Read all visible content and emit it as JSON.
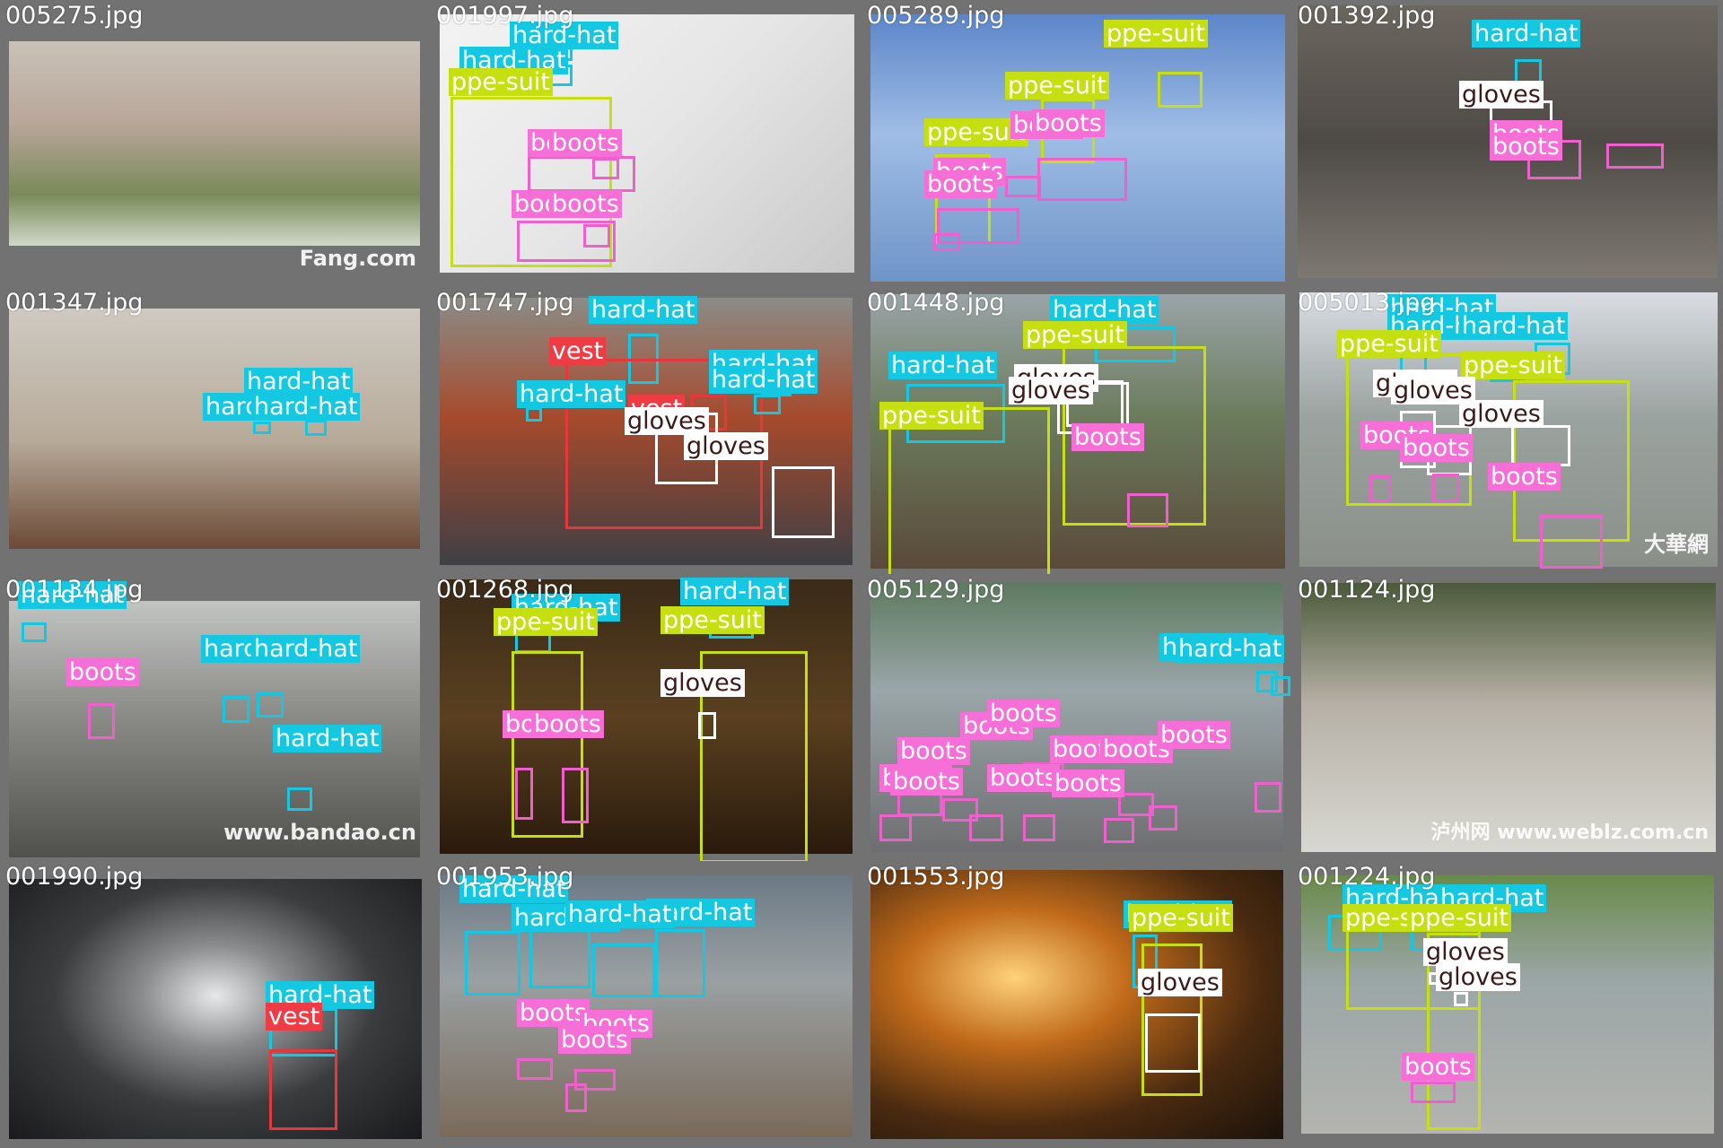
{
  "window": {
    "title": ""
  },
  "colors": {
    "hard-hat": "#14c8e2",
    "ppe-suit": "#c6df10",
    "boots": "#f56fd6",
    "gloves": "#ffffff",
    "vest": "#ee3b44",
    "tile_background": "#727272"
  },
  "tiles": [
    {
      "filename": "005275.jpg",
      "detections": []
    },
    {
      "filename": "001997.jpg",
      "detections": [
        {
          "label": "hard-hat"
        },
        {
          "label": "hard-hat"
        },
        {
          "label": "ppe-suit"
        },
        {
          "label": "boots"
        },
        {
          "label": "boots"
        },
        {
          "label": "boots"
        },
        {
          "label": "boots"
        }
      ]
    },
    {
      "filename": "005289.jpg",
      "detections": [
        {
          "label": "ppe-suit"
        },
        {
          "label": "ppe-suit"
        },
        {
          "label": "ppe-suit"
        },
        {
          "label": "boots"
        },
        {
          "label": "boots"
        },
        {
          "label": "boots"
        },
        {
          "label": "boots"
        }
      ]
    },
    {
      "filename": "001392.jpg",
      "detections": [
        {
          "label": "hard-hat"
        },
        {
          "label": "gloves"
        },
        {
          "label": "boots"
        },
        {
          "label": "boots"
        }
      ]
    },
    {
      "filename": "001347.jpg",
      "detections": [
        {
          "label": "hard-hat"
        },
        {
          "label": "hard-hat"
        },
        {
          "label": "hard-hat"
        }
      ]
    },
    {
      "filename": "001747.jpg",
      "detections": [
        {
          "label": "hard-hat"
        },
        {
          "label": "vest"
        },
        {
          "label": "hard-hat"
        },
        {
          "label": "hard-hat"
        },
        {
          "label": "hard-hat"
        },
        {
          "label": "vest"
        },
        {
          "label": "gloves"
        },
        {
          "label": "gloves"
        }
      ]
    },
    {
      "filename": "001448.jpg",
      "detections": [
        {
          "label": "hard-hat"
        },
        {
          "label": "hard-hat"
        },
        {
          "label": "ppe-suit"
        },
        {
          "label": "ppe-suit"
        },
        {
          "label": "gloves"
        },
        {
          "label": "gloves"
        },
        {
          "label": "boots"
        }
      ]
    },
    {
      "filename": "005013.jpg",
      "detections": [
        {
          "label": "hard-hat"
        },
        {
          "label": "hard-hat"
        },
        {
          "label": "hard-hat"
        },
        {
          "label": "ppe-suit"
        },
        {
          "label": "ppe-suit"
        },
        {
          "label": "gloves"
        },
        {
          "label": "gloves"
        },
        {
          "label": "gloves"
        },
        {
          "label": "boots"
        },
        {
          "label": "boots"
        },
        {
          "label": "boots"
        }
      ]
    },
    {
      "filename": "001134.jpg",
      "detections": [
        {
          "label": "hard-hat"
        },
        {
          "label": "hard-hat"
        },
        {
          "label": "hard-hat"
        },
        {
          "label": "boots"
        },
        {
          "label": "hard-hat"
        }
      ]
    },
    {
      "filename": "001268.jpg",
      "detections": [
        {
          "label": "hard-hat"
        },
        {
          "label": "hard-hat"
        },
        {
          "label": "ppe-suit"
        },
        {
          "label": "ppe-suit"
        },
        {
          "label": "gloves"
        },
        {
          "label": "boots"
        },
        {
          "label": "boots"
        }
      ]
    },
    {
      "filename": "005129.jpg",
      "detections": [
        {
          "label": "hard-hat"
        },
        {
          "label": "hard-hat"
        },
        {
          "label": "boots"
        },
        {
          "label": "boots"
        },
        {
          "label": "boots"
        },
        {
          "label": "boots"
        },
        {
          "label": "boots"
        },
        {
          "label": "boots"
        },
        {
          "label": "boots"
        },
        {
          "label": "boots"
        },
        {
          "label": "boots"
        },
        {
          "label": "boots"
        }
      ]
    },
    {
      "filename": "001124.jpg",
      "detections": []
    },
    {
      "filename": "001990.jpg",
      "detections": [
        {
          "label": "hard-hat"
        },
        {
          "label": "vest"
        }
      ]
    },
    {
      "filename": "001953.jpg",
      "detections": [
        {
          "label": "hard-hat"
        },
        {
          "label": "hard-hat"
        },
        {
          "label": "hard-hat"
        },
        {
          "label": "hard-hat"
        },
        {
          "label": "boots"
        },
        {
          "label": "boots"
        },
        {
          "label": "boots"
        }
      ]
    },
    {
      "filename": "001553.jpg",
      "detections": [
        {
          "label": "hard-hat"
        },
        {
          "label": "ppe-suit"
        },
        {
          "label": "gloves"
        }
      ]
    },
    {
      "filename": "001224.jpg",
      "detections": [
        {
          "label": "hard-hat"
        },
        {
          "label": "hard-hat"
        },
        {
          "label": "ppe-suit"
        },
        {
          "label": "ppe-suit"
        },
        {
          "label": "gloves"
        },
        {
          "label": "gloves"
        },
        {
          "label": "boots"
        }
      ]
    }
  ],
  "watermarks": {
    "t0": "Fang.com",
    "t7": "大華網",
    "t8": "www.bandao.cn",
    "t11": "泸州网 www.weblz.com.cn"
  }
}
